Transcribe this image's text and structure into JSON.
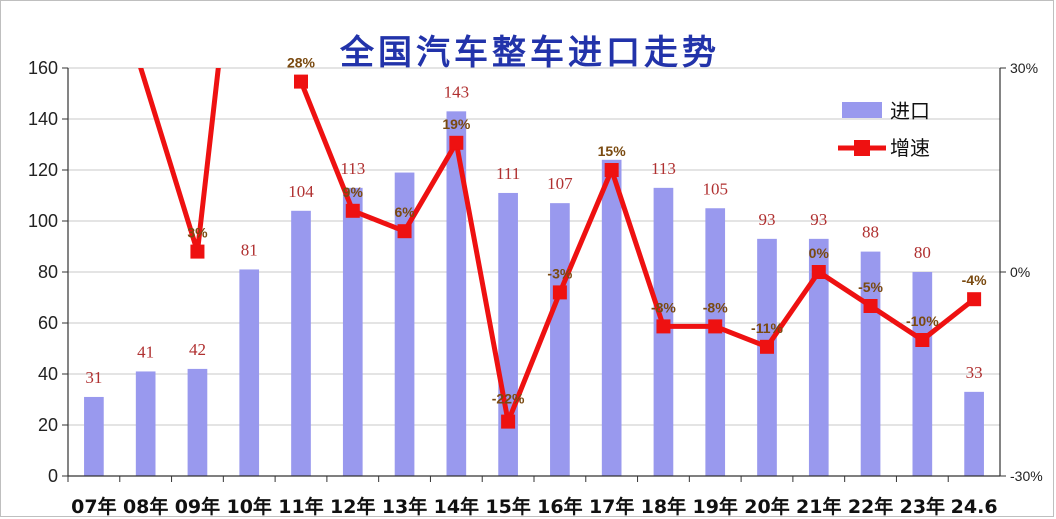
{
  "chart_data": {
    "type": "bar",
    "title": "全国汽车整车进口走势",
    "categories": [
      "07年",
      "08年",
      "09年",
      "10年",
      "11年",
      "12年",
      "13年",
      "14年",
      "15年",
      "16年",
      "17年",
      "18年",
      "19年",
      "20年",
      "21年",
      "22年",
      "23年",
      "24.6"
    ],
    "series": [
      {
        "name": "进口",
        "type": "bar",
        "axis": "left",
        "color": "#9999ee",
        "values": [
          31,
          41,
          42,
          81,
          104,
          113,
          119,
          143,
          111,
          107,
          124,
          113,
          105,
          93,
          93,
          88,
          80,
          33
        ],
        "labels": [
          "31",
          "41",
          "42",
          "81",
          "104",
          "113",
          "",
          "143",
          "111",
          "107",
          "",
          "113",
          "105",
          "93",
          "93",
          "88",
          "80",
          "33"
        ]
      },
      {
        "name": "增速",
        "type": "line",
        "axis": "right",
        "color": "#ee1111",
        "values": [
          null,
          null,
          3,
          null,
          28,
          9,
          6,
          19,
          -22,
          -3,
          15,
          -8,
          -8,
          -11,
          0,
          -5,
          -10,
          -4
        ],
        "labels": [
          "",
          "",
          "3%",
          "",
          "28%",
          "9%",
          "6%",
          "19%",
          "-22%",
          "-3%",
          "15%",
          "-8%",
          "-8%",
          "-11%",
          "0%",
          "-5%",
          "-10%",
          "-4%"
        ]
      }
    ],
    "y_left": {
      "min": 0,
      "max": 160,
      "step": 20,
      "ticks": [
        "0",
        "20",
        "40",
        "60",
        "80",
        "100",
        "120",
        "140",
        "160"
      ]
    },
    "y_right": {
      "min": -30,
      "max": 30,
      "ticks": [
        "-30%",
        "0%",
        "30%"
      ]
    },
    "grid": "horizontal",
    "legend": {
      "position": "top-right",
      "items": [
        "进口",
        "增速"
      ]
    }
  }
}
